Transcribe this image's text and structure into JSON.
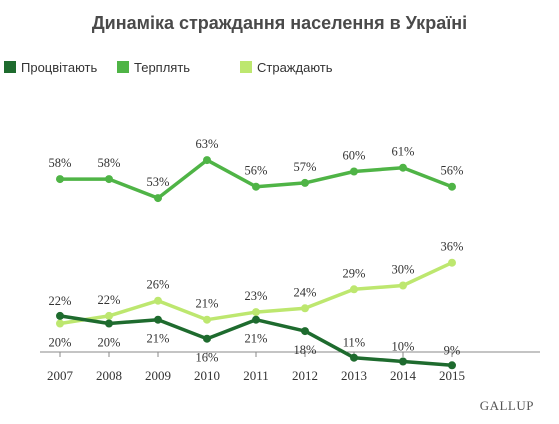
{
  "chart_data": {
    "type": "line",
    "title": "Динаміка страждання населення в Україні",
    "categories": [
      "2007",
      "2008",
      "2009",
      "2010",
      "2011",
      "2012",
      "2013",
      "2014",
      "2015"
    ],
    "ylim": [
      0,
      70
    ],
    "grid": false,
    "legend_position": "top-left",
    "series": [
      {
        "name": "Процвітають",
        "color": "#1e6b2e",
        "values": [
          22,
          20,
          21,
          16,
          21,
          18,
          11,
          10,
          9
        ],
        "labels": [
          "22%",
          "20%",
          "21%",
          "16%",
          "21%",
          "18%",
          "11%",
          "10%",
          "9%"
        ]
      },
      {
        "name": "Терплять",
        "color": "#4fb446",
        "values": [
          58,
          58,
          53,
          63,
          56,
          57,
          60,
          61,
          56
        ],
        "labels": [
          "58%",
          "58%",
          "53%",
          "63%",
          "56%",
          "57%",
          "60%",
          "61%",
          "56%"
        ]
      },
      {
        "name": "Страждають",
        "color": "#bde76f",
        "values": [
          20,
          22,
          26,
          21,
          23,
          24,
          29,
          30,
          36
        ],
        "labels": [
          "20%",
          "22%",
          "26%",
          "21%",
          "23%",
          "24%",
          "29%",
          "30%",
          "36%"
        ]
      }
    ],
    "brand": "GALLUP"
  }
}
